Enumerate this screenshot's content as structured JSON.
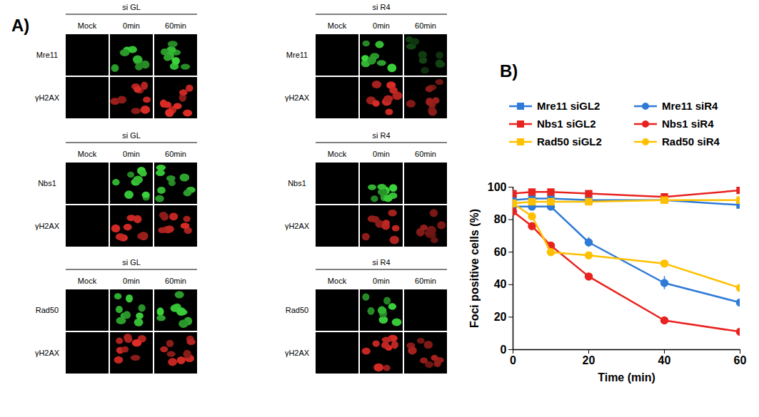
{
  "figure": {
    "panel_a": {
      "label": "A)",
      "groups": [
        {
          "title": "si GL",
          "columns": [
            "Mock",
            "0min",
            "60min"
          ],
          "rows": [
            "Mre11",
            "γH2AX"
          ]
        },
        {
          "title": "si R4",
          "columns": [
            "Mock",
            "0min",
            "60min"
          ],
          "rows": [
            "Mre11",
            "γH2AX"
          ]
        },
        {
          "title": "si GL",
          "columns": [
            "Mock",
            "0min",
            "60min"
          ],
          "rows": [
            "Nbs1",
            "γH2AX"
          ]
        },
        {
          "title": "si R4",
          "columns": [
            "Mock",
            "0min",
            "60min"
          ],
          "rows": [
            "Nbs1",
            "γH2AX"
          ]
        },
        {
          "title": "si GL",
          "columns": [
            "Mock",
            "0min",
            "60min"
          ],
          "rows": [
            "Rad50",
            "γH2AX"
          ]
        },
        {
          "title": "si R4",
          "columns": [
            "Mock",
            "0min",
            "60min"
          ],
          "rows": [
            "Rad50",
            "γH2AX"
          ]
        }
      ]
    },
    "panel_b": {
      "label": "B)"
    }
  },
  "chart_data": {
    "type": "line",
    "x_label": "Time (min)",
    "y_label": "Foci positive cells (%)",
    "x": [
      0,
      5,
      10,
      20,
      40,
      60
    ],
    "series": [
      {
        "name": "Mre11 siGL2",
        "color": "#2e7ad6",
        "marker": "square",
        "values": [
          92,
          93,
          93,
          92,
          92,
          89
        ]
      },
      {
        "name": "Mre11 siR4",
        "color": "#2e7ad6",
        "marker": "circle",
        "values": [
          88,
          88,
          88,
          66,
          41,
          29
        ],
        "errors": [
          null,
          null,
          null,
          3,
          4,
          1
        ]
      },
      {
        "name": "Nbs1 siGL2",
        "color": "#e8231f",
        "marker": "square",
        "values": [
          96,
          97,
          97,
          96,
          94,
          98
        ]
      },
      {
        "name": "Nbs1 siR4",
        "color": "#e8231f",
        "marker": "circle",
        "values": [
          85,
          76,
          64,
          45,
          18,
          11
        ],
        "errors": [
          null,
          null,
          null,
          null,
          null,
          2
        ]
      },
      {
        "name": "Rad50 siGL2",
        "color": "#ffc000",
        "marker": "square",
        "values": [
          90,
          91,
          91,
          91,
          92,
          92
        ]
      },
      {
        "name": "Rad50 siR4",
        "color": "#ffc000",
        "marker": "circle",
        "values": [
          90,
          82,
          60,
          58,
          53,
          38
        ]
      }
    ],
    "xlim": [
      0,
      60
    ],
    "xticks": [
      0,
      20,
      40,
      60
    ],
    "ylim": [
      0,
      100
    ],
    "yticks": [
      0,
      20,
      40,
      60,
      80,
      100
    ],
    "grid": false
  }
}
